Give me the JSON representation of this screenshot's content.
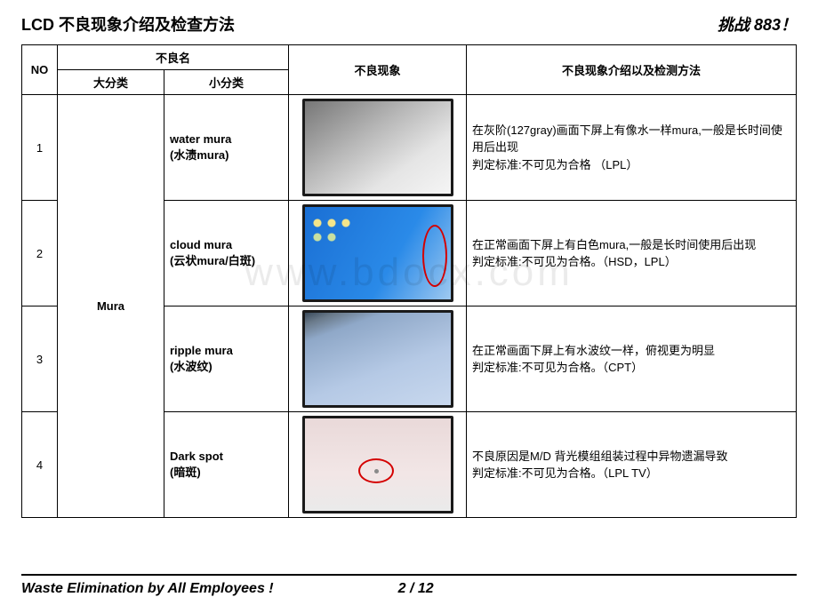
{
  "header": {
    "title": "LCD  不良现象介绍及检查方法",
    "slogan": "挑战 883！"
  },
  "columns": {
    "no": "NO",
    "defect_name": "不良名",
    "main_cat": "大分类",
    "sub_cat": "小分类",
    "phenomenon": "不良现象",
    "description": "不良现象介绍以及检测方法"
  },
  "main_category": "Mura",
  "rows": [
    {
      "no": "1",
      "sub_en": "water mura",
      "sub_zh": "(水渍mura)",
      "thumb_style": "gray-grad",
      "desc": "在灰阶(127gray)画面下屏上有像水一样mura,一般是长时间使用后出现\n判定标准:不可见为合格  （LPL）"
    },
    {
      "no": "2",
      "sub_en": "cloud mura",
      "sub_zh": "(云状mura/白斑)",
      "thumb_style": "blue-desktop",
      "has_red_oval": true,
      "desc": "在正常画面下屏上有白色mura,一般是长时间使用后出现\n判定标准:不可见为合格。（HSD，LPL）"
    },
    {
      "no": "3",
      "sub_en": "ripple mura",
      "sub_zh": "(水波纹)",
      "thumb_style": "pale-blue",
      "desc": "在正常画面下屏上有水波纹一样，俯视更为明显\n判定标准:不可见为合格。（CPT）"
    },
    {
      "no": "4",
      "sub_en": "Dark spot",
      "sub_zh": "(暗斑)",
      "thumb_style": "pinkish",
      "has_dark_spot": true,
      "desc": "不良原因是M/D 背光模组组装过程中异物遗漏导致\n判定标准:不可见为合格。（LPL TV）"
    }
  ],
  "watermark": "www.bdocx.com",
  "footer": {
    "left": "Waste Elimination by All Employees !",
    "page": "2 / 12"
  }
}
